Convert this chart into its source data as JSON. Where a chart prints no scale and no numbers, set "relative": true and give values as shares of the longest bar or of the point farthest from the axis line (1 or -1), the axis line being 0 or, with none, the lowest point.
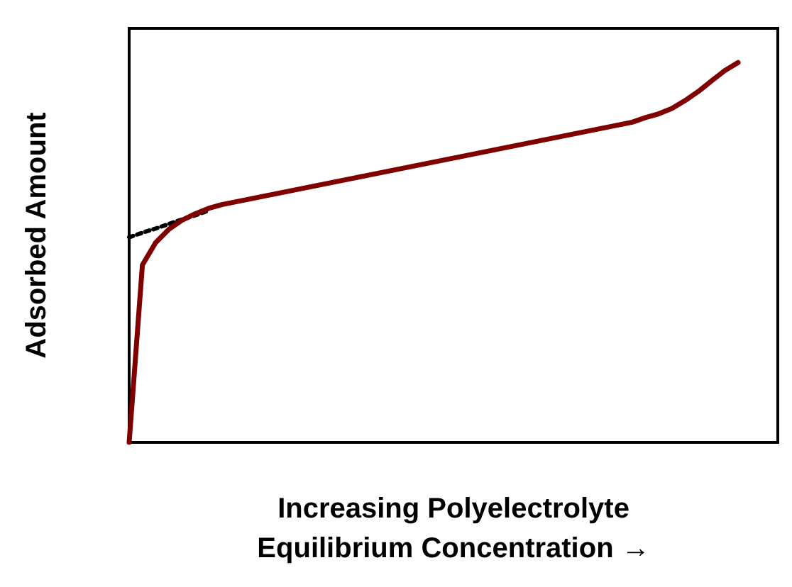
{
  "chart_data": {
    "type": "line",
    "relative": true,
    "xlabel": "Increasing Polyelectrolyte\nEquilibrium Concentration →",
    "ylabel": "Adsorbed Amount",
    "marker": "none",
    "categories": [
      null,
      null,
      null,
      null,
      null,
      null,
      null,
      null,
      null,
      null,
      null,
      null,
      null,
      null,
      null,
      null,
      null,
      null,
      null,
      null,
      null,
      null,
      null,
      null,
      null,
      null,
      null,
      null,
      null,
      null,
      null,
      null,
      null,
      null,
      null,
      null,
      null,
      null,
      null,
      null,
      null,
      null,
      null,
      null,
      null,
      null,
      null,
      null,
      null,
      null
    ],
    "series": [
      {
        "color": "#800000",
        "line_style": "solid",
        "values": [
          0,
          0.467,
          0.526,
          0.561,
          0.585,
          0.602,
          0.616,
          0.626,
          0.633,
          0.64,
          0.647,
          0.654,
          0.661,
          0.668,
          0.675,
          0.682,
          0.689,
          0.696,
          0.703,
          0.71,
          0.717,
          0.724,
          0.731,
          0.738,
          0.745,
          0.752,
          0.759,
          0.766,
          0.773,
          0.78,
          0.787,
          0.794,
          0.801,
          0.808,
          0.815,
          0.822,
          0.829,
          0.836,
          0.843,
          0.855,
          0.865,
          0.879,
          0.9,
          0.924,
          0.952,
          0.979,
          1,
          null,
          null,
          null
        ]
      },
      {
        "color": "#000000",
        "line_style": "dotted",
        "values": [
          0.54,
          0.552,
          0.563,
          0.575,
          0.587,
          0.598,
          0.61,
          null,
          null,
          null,
          null,
          null,
          null,
          null,
          null,
          null,
          null,
          null,
          null,
          null,
          null,
          null,
          null,
          null,
          null,
          null,
          null,
          null,
          null,
          null,
          null,
          null,
          null,
          null,
          null,
          null,
          null,
          null,
          null,
          null,
          null,
          null,
          null,
          null,
          null,
          null,
          null,
          null,
          null,
          null
        ]
      }
    ]
  }
}
